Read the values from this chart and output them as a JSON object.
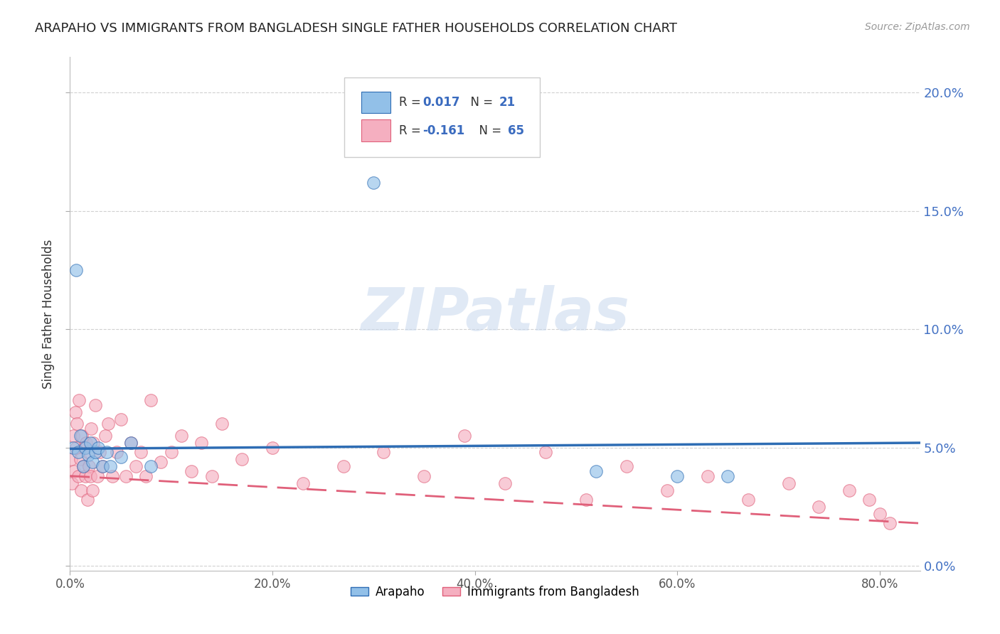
{
  "title": "ARAPAHO VS IMMIGRANTS FROM BANGLADESH SINGLE FATHER HOUSEHOLDS CORRELATION CHART",
  "source": "Source: ZipAtlas.com",
  "ylabel": "Single Father Households",
  "r_arapaho": "0.017",
  "n_arapaho": "21",
  "r_bangladesh": "-0.161",
  "n_bangladesh": "65",
  "xlim": [
    0.0,
    0.84
  ],
  "ylim": [
    -0.002,
    0.215
  ],
  "yticks": [
    0.0,
    0.05,
    0.1,
    0.15,
    0.2
  ],
  "ytick_labels": [
    "0.0%",
    "5.0%",
    "10.0%",
    "15.0%",
    "20.0%"
  ],
  "xticks": [
    0.0,
    0.2,
    0.4,
    0.6,
    0.8
  ],
  "xtick_labels": [
    "0.0%",
    "20.0%",
    "40.0%",
    "60.0%",
    "80.0%"
  ],
  "color_arapaho": "#92c0e8",
  "color_bangladesh": "#f5afc0",
  "line_color_arapaho": "#2e6db4",
  "line_color_bangladesh": "#e0607a",
  "watermark": "ZIPatlas",
  "bg_color": "#ffffff",
  "grid_color": "#cccccc",
  "legend_bottom": [
    "Arapaho",
    "Immigrants from Bangladesh"
  ],
  "arapaho_x": [
    0.003,
    0.006,
    0.008,
    0.01,
    0.013,
    0.015,
    0.018,
    0.02,
    0.022,
    0.025,
    0.028,
    0.032,
    0.036,
    0.04,
    0.05,
    0.06,
    0.08,
    0.3,
    0.52,
    0.6,
    0.65
  ],
  "arapaho_y": [
    0.05,
    0.125,
    0.048,
    0.055,
    0.042,
    0.05,
    0.047,
    0.052,
    0.044,
    0.048,
    0.05,
    0.042,
    0.048,
    0.042,
    0.046,
    0.052,
    0.042,
    0.162,
    0.04,
    0.038,
    0.038
  ],
  "bangladesh_x": [
    0.001,
    0.002,
    0.003,
    0.004,
    0.005,
    0.006,
    0.007,
    0.008,
    0.009,
    0.01,
    0.011,
    0.012,
    0.013,
    0.014,
    0.015,
    0.016,
    0.017,
    0.018,
    0.019,
    0.02,
    0.021,
    0.022,
    0.023,
    0.025,
    0.027,
    0.029,
    0.032,
    0.035,
    0.038,
    0.042,
    0.046,
    0.05,
    0.055,
    0.06,
    0.065,
    0.07,
    0.075,
    0.08,
    0.09,
    0.1,
    0.11,
    0.12,
    0.13,
    0.14,
    0.15,
    0.17,
    0.2,
    0.23,
    0.27,
    0.31,
    0.35,
    0.39,
    0.43,
    0.47,
    0.51,
    0.55,
    0.59,
    0.63,
    0.67,
    0.71,
    0.74,
    0.77,
    0.79,
    0.8,
    0.81
  ],
  "bangladesh_y": [
    0.045,
    0.035,
    0.055,
    0.04,
    0.065,
    0.05,
    0.06,
    0.038,
    0.07,
    0.045,
    0.032,
    0.055,
    0.042,
    0.05,
    0.038,
    0.052,
    0.028,
    0.048,
    0.042,
    0.038,
    0.058,
    0.032,
    0.052,
    0.068,
    0.038,
    0.048,
    0.042,
    0.055,
    0.06,
    0.038,
    0.048,
    0.062,
    0.038,
    0.052,
    0.042,
    0.048,
    0.038,
    0.07,
    0.044,
    0.048,
    0.055,
    0.04,
    0.052,
    0.038,
    0.06,
    0.045,
    0.05,
    0.035,
    0.042,
    0.048,
    0.038,
    0.055,
    0.035,
    0.048,
    0.028,
    0.042,
    0.032,
    0.038,
    0.028,
    0.035,
    0.025,
    0.032,
    0.028,
    0.022,
    0.018
  ],
  "blue_line_x": [
    0.0,
    0.84
  ],
  "blue_line_y": [
    0.0495,
    0.052
  ],
  "pink_line_x": [
    0.0,
    0.84
  ],
  "pink_line_y": [
    0.038,
    0.018
  ]
}
